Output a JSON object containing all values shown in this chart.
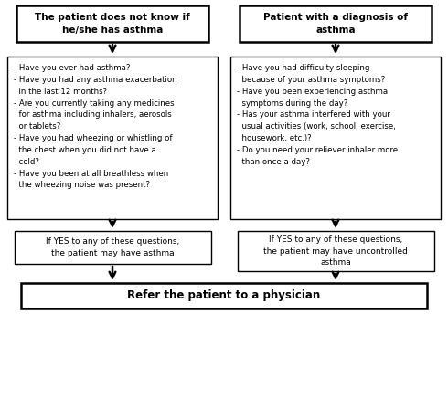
{
  "bg_color": "#ffffff",
  "ec": "#000000",
  "fc": "#ffffff",
  "title_box1": "The patient does not know if\nhe/she has asthma",
  "title_box2": "Patient with a diagnosis of\nasthma",
  "q_left_lines": [
    "- Have you ever had asthma?",
    "- Have you had any asthma exacerbation\n  in the last 12 months?",
    "- Are you currently taking any medicines\n  for asthma including inhalers, aerosols\n  or tablets?",
    "- Have you had wheezing or whistling of\n  the chest when you did not have a\n  cold?",
    "- Have you been at all breathless when\n  the wheezing noise was present?"
  ],
  "q_right_lines": [
    "- Have you had difficulty sleeping\n  because of your asthma symptoms?",
    "- Have you been experiencing asthma\n  symptoms during the day?",
    "- Has your asthma interfered with your\n  usual activities (work, school, exercise,\n  housework, etc.)?",
    "- Do you need your reliever inhaler more\n  than once a day?"
  ],
  "result_left": "If YES to any of these questions,\nthe patient may have asthma",
  "result_right": "If YES to any of these questions,\nthe patient may have uncontrolled\nasthma",
  "final_box": "Refer the patient to a physician",
  "title_fontsize": 7.5,
  "q_fontsize": 6.2,
  "result_fontsize": 6.5,
  "final_fontsize": 8.5
}
